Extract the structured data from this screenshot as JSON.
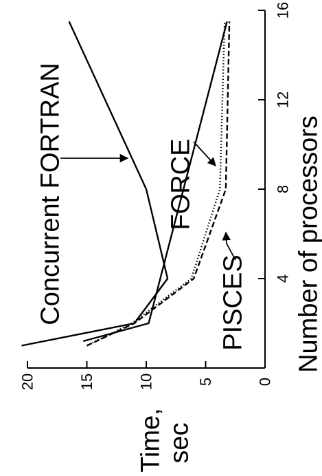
{
  "chart_data": {
    "type": "line",
    "orientation": "rotated-90-ccw",
    "xlabel": "Number of processors",
    "ylabel": [
      "Time,",
      "sec"
    ],
    "xlim": [
      0,
      16
    ],
    "ylim": [
      0,
      20
    ],
    "xticks": [
      0,
      4,
      8,
      12,
      16
    ],
    "yticks": [
      0,
      5,
      10,
      15,
      20
    ],
    "xtick_labels": [
      "",
      "4",
      "8",
      "12",
      "16"
    ],
    "ytick_labels": [
      "0",
      "5",
      "10",
      "15",
      "20"
    ],
    "series": [
      {
        "name": "Concurrent FORTRAN",
        "style": "solid",
        "x": [
          1,
          2,
          4,
          8,
          15.5
        ],
        "y": [
          20.5,
          11,
          8.2,
          10,
          16.5
        ]
      },
      {
        "name": "FORCE",
        "style": "dotted",
        "x": [
          1,
          2,
          4,
          8,
          15.5
        ],
        "y": [
          15,
          11.2,
          6.2,
          3.8,
          3.4
        ]
      },
      {
        "name": "PISCES",
        "style": "dashed",
        "x": [
          1,
          2,
          4,
          8,
          15.5
        ],
        "y": [
          15,
          11,
          6,
          3.3,
          3.0
        ]
      },
      {
        "name": "",
        "style": "solid",
        "x": [
          1.2,
          2,
          15.5
        ],
        "y": [
          15.3,
          9.8,
          3.2
        ]
      }
    ]
  }
}
